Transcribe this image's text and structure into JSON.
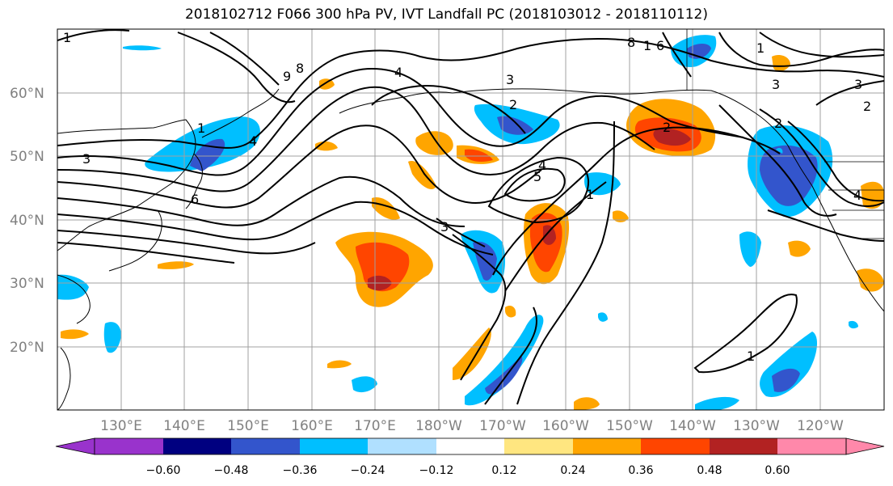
{
  "title": "2018102712 F066 300 hPa PV, IVT Landfall PC (2018103012 - 2018110112)",
  "map": {
    "lat_labels": [
      "60°N",
      "50°N",
      "40°N",
      "30°N",
      "20°N"
    ],
    "lon_labels": [
      "130°E",
      "140°E",
      "150°E",
      "160°E",
      "170°E",
      "180°W",
      "170°W",
      "160°W",
      "150°W",
      "140°W",
      "130°W",
      "120°W"
    ],
    "contour_labels": [
      "1",
      "8",
      "9",
      "3",
      "4",
      "1",
      "6",
      "4",
      "3",
      "2",
      "3",
      "4",
      "5",
      "1",
      "8",
      "1",
      "6",
      "2",
      "1",
      "3",
      "3",
      "2",
      "4",
      "1",
      "2"
    ]
  },
  "colorbar": {
    "ticks": [
      "−0.60",
      "−0.48",
      "−0.36",
      "−0.24",
      "−0.12",
      "0.12",
      "0.24",
      "0.36",
      "0.48",
      "0.60"
    ],
    "colors": [
      "#9933cc",
      "#000080",
      "#3355cc",
      "#00bfff",
      "#b0e0ff",
      "#ffffff",
      "#ffe680",
      "#ffa500",
      "#ff4500",
      "#b22222",
      "#ff88aa"
    ]
  }
}
